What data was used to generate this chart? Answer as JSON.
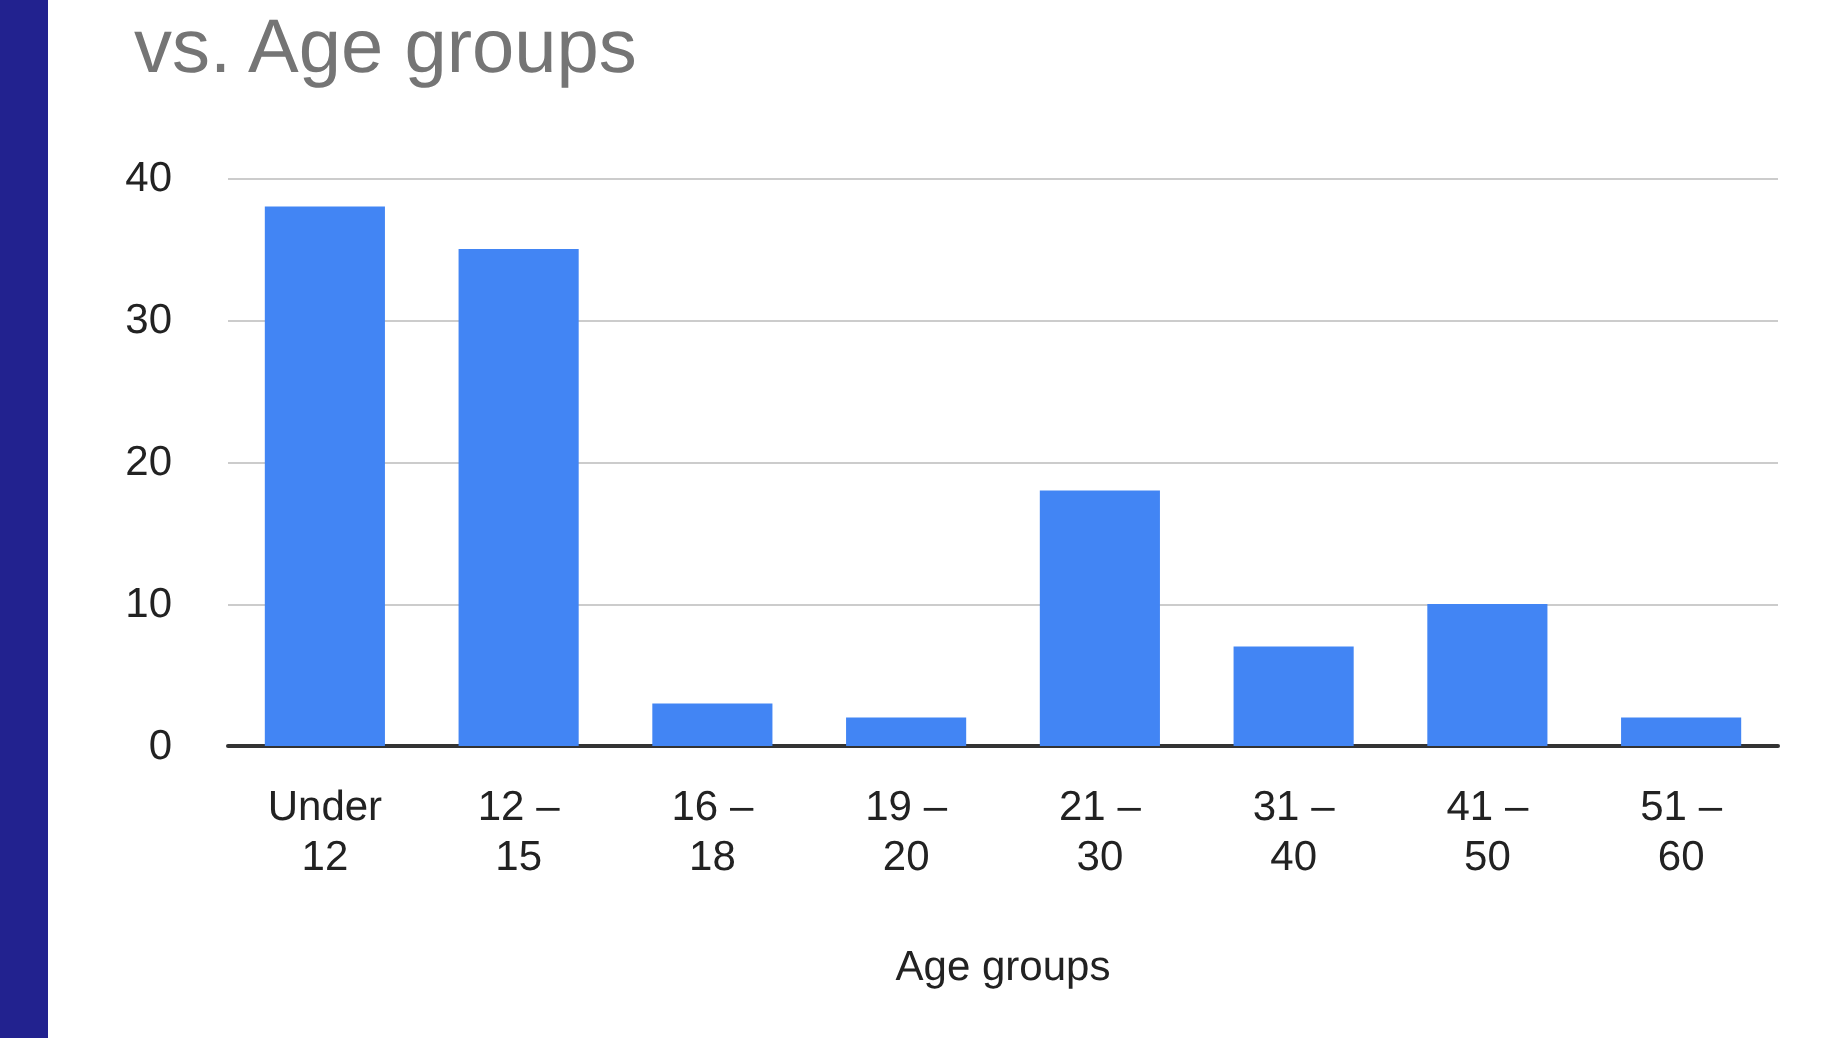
{
  "chart_data": {
    "type": "bar",
    "title": "vs. Age groups",
    "xlabel": "Age groups",
    "categories": [
      "Under\n12",
      "12 –\n15",
      "16 –\n18",
      "19 –\n20",
      "21 –\n30",
      "31 –\n40",
      "41 –\n50",
      "51 –\n60"
    ],
    "values": [
      38,
      35,
      3,
      2,
      18,
      7,
      10,
      2
    ],
    "color": "#4285f4",
    "ylim": [
      0,
      40
    ],
    "yticks": [
      0,
      10,
      20,
      30,
      40
    ],
    "grid": "y"
  }
}
